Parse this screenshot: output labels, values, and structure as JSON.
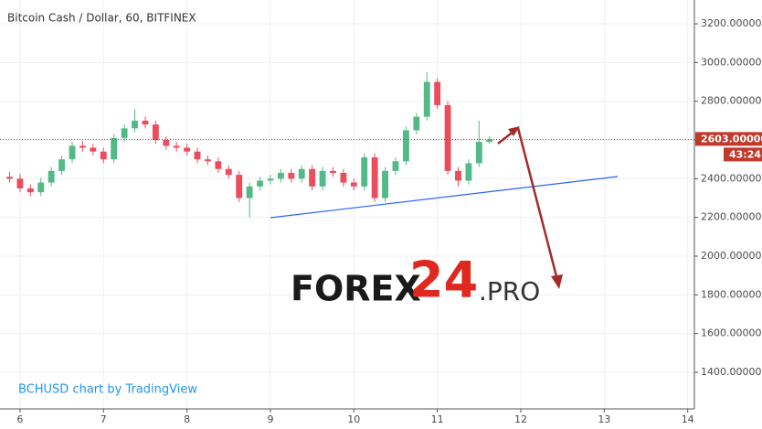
{
  "chart_data": {
    "type": "candlestick",
    "title": "Bitcoin Cash / Dollar, 60, BITFINEX",
    "watermark": "BCHUSD chart by TradingView",
    "logo": {
      "main": "FOREX",
      "number": "24",
      "suffix": ".PRO"
    },
    "x": [
      5.875,
      6,
      6.125,
      6.25,
      6.375,
      6.5,
      6.625,
      6.75,
      6.875,
      7,
      7.125,
      7.25,
      7.375,
      7.5,
      7.625,
      7.75,
      7.875,
      8,
      8.125,
      8.25,
      8.375,
      8.5,
      8.625,
      8.75,
      8.875,
      9,
      9.125,
      9.25,
      9.375,
      9.5,
      9.625,
      9.75,
      9.875,
      10,
      10.125,
      10.25,
      10.375,
      10.5,
      10.625,
      10.75,
      10.875,
      11,
      11.125,
      11.25,
      11.375,
      11.5,
      11.625
    ],
    "open": [
      2410,
      2400,
      2350,
      2330,
      2380,
      2440,
      2500,
      2570,
      2560,
      2540,
      2500,
      2610,
      2660,
      2700,
      2680,
      2600,
      2570,
      2560,
      2540,
      2500,
      2490,
      2450,
      2420,
      2300,
      2360,
      2390,
      2400,
      2430,
      2400,
      2450,
      2360,
      2440,
      2430,
      2380,
      2360,
      2510,
      2300,
      2440,
      2490,
      2650,
      2720,
      2900,
      2780,
      2440,
      2390,
      2480,
      2590
    ],
    "high": [
      2435,
      2425,
      2370,
      2405,
      2460,
      2520,
      2590,
      2595,
      2580,
      2560,
      2630,
      2680,
      2760,
      2720,
      2700,
      2620,
      2590,
      2580,
      2560,
      2520,
      2510,
      2470,
      2440,
      2380,
      2410,
      2420,
      2450,
      2450,
      2470,
      2470,
      2460,
      2460,
      2450,
      2400,
      2530,
      2530,
      2460,
      2510,
      2670,
      2740,
      2950,
      2920,
      2800,
      2460,
      2500,
      2700,
      2620
    ],
    "low": [
      2380,
      2330,
      2310,
      2310,
      2360,
      2420,
      2480,
      2540,
      2520,
      2480,
      2480,
      2590,
      2640,
      2660,
      2580,
      2550,
      2540,
      2520,
      2480,
      2470,
      2430,
      2400,
      2280,
      2200,
      2340,
      2370,
      2380,
      2380,
      2380,
      2340,
      2340,
      2410,
      2360,
      2340,
      2340,
      2280,
      2280,
      2420,
      2470,
      2630,
      2700,
      2760,
      2420,
      2360,
      2370,
      2460,
      2580
    ],
    "close": [
      2400,
      2350,
      2330,
      2380,
      2440,
      2500,
      2570,
      2560,
      2540,
      2500,
      2610,
      2660,
      2700,
      2680,
      2600,
      2570,
      2560,
      2540,
      2500,
      2490,
      2450,
      2420,
      2300,
      2360,
      2390,
      2400,
      2430,
      2400,
      2450,
      2360,
      2440,
      2430,
      2380,
      2360,
      2510,
      2300,
      2440,
      2490,
      2650,
      2720,
      2900,
      2780,
      2440,
      2390,
      2480,
      2590,
      2603
    ],
    "up_color": "#53b987",
    "down_color": "#eb4d5c",
    "last_price": {
      "value": 2603,
      "label": "2603.000000"
    },
    "countdown": "43:24",
    "xlim": [
      5.76,
      14.08
    ],
    "ylim": [
      1211,
      3323
    ],
    "xticks": [
      6,
      7,
      8,
      9,
      10,
      11,
      12,
      13,
      14
    ],
    "yticks": [
      {
        "value": 1400,
        "label": "1400.000000"
      },
      {
        "value": 1600,
        "label": "1600.000000"
      },
      {
        "value": 1800,
        "label": "1800.000000"
      },
      {
        "value": 2000,
        "label": "2000.000000"
      },
      {
        "value": 2200,
        "label": "2200.000000"
      },
      {
        "value": 2400,
        "label": "2400.000000"
      },
      {
        "value": 2600,
        "label": "2600.000000"
      },
      {
        "value": 2800,
        "label": "2800.000000"
      },
      {
        "value": 3000,
        "label": "3000.000000"
      },
      {
        "value": 3200,
        "label": "3200.000000"
      }
    ],
    "grid": true
  }
}
